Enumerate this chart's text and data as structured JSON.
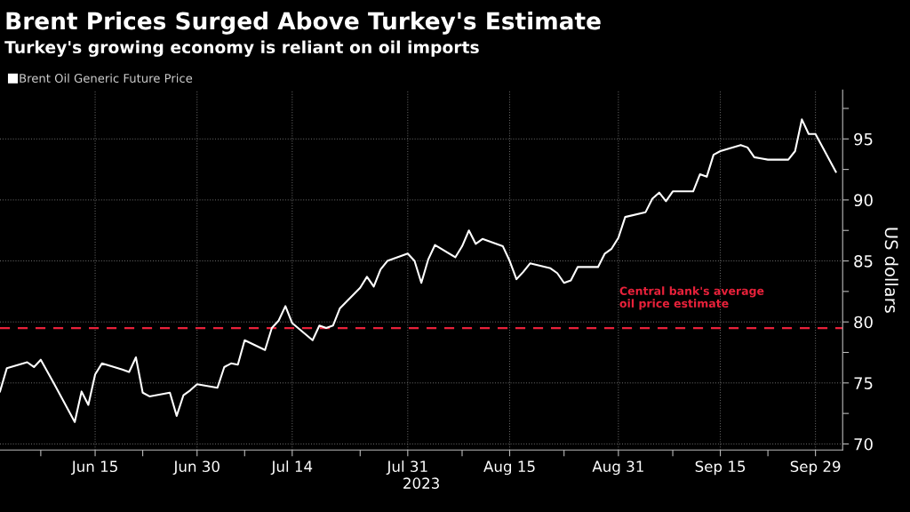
{
  "chart_data": {
    "type": "line",
    "title": "Brent Prices Surged Above Turkey's Estimate",
    "subtitle": "Turkey's growing economy is reliant on oil imports",
    "xlabel": "2023",
    "ylabel": "US dollars",
    "x": [
      "2023-06-01",
      "2023-06-02",
      "2023-06-05",
      "2023-06-06",
      "2023-06-07",
      "2023-06-08",
      "2023-06-09",
      "2023-06-12",
      "2023-06-13",
      "2023-06-14",
      "2023-06-15",
      "2023-06-16",
      "2023-06-19",
      "2023-06-20",
      "2023-06-21",
      "2023-06-22",
      "2023-06-23",
      "2023-06-26",
      "2023-06-27",
      "2023-06-28",
      "2023-06-29",
      "2023-06-30",
      "2023-07-03",
      "2023-07-04",
      "2023-07-05",
      "2023-07-06",
      "2023-07-07",
      "2023-07-10",
      "2023-07-11",
      "2023-07-12",
      "2023-07-13",
      "2023-07-14",
      "2023-07-17",
      "2023-07-18",
      "2023-07-19",
      "2023-07-20",
      "2023-07-21",
      "2023-07-24",
      "2023-07-25",
      "2023-07-26",
      "2023-07-27",
      "2023-07-28",
      "2023-07-31",
      "2023-08-01",
      "2023-08-02",
      "2023-08-03",
      "2023-08-04",
      "2023-08-07",
      "2023-08-08",
      "2023-08-09",
      "2023-08-10",
      "2023-08-11",
      "2023-08-14",
      "2023-08-15",
      "2023-08-16",
      "2023-08-17",
      "2023-08-18",
      "2023-08-21",
      "2023-08-22",
      "2023-08-23",
      "2023-08-24",
      "2023-08-25",
      "2023-08-28",
      "2023-08-29",
      "2023-08-30",
      "2023-08-31",
      "2023-09-01",
      "2023-09-04",
      "2023-09-05",
      "2023-09-06",
      "2023-09-07",
      "2023-09-08",
      "2023-09-11",
      "2023-09-12",
      "2023-09-13",
      "2023-09-14",
      "2023-09-15",
      "2023-09-18",
      "2023-09-19",
      "2023-09-20",
      "2023-09-21",
      "2023-09-22",
      "2023-09-25",
      "2023-09-26",
      "2023-09-27",
      "2023-09-28",
      "2023-09-29",
      "2023-10-02"
    ],
    "series": [
      {
        "name": "Brent Oil Generic Future Price",
        "color": "#ffffff",
        "values": [
          74.3,
          76.2,
          76.7,
          76.3,
          76.9,
          75.9,
          74.9,
          71.8,
          74.3,
          73.2,
          75.7,
          76.6,
          76.1,
          75.9,
          77.1,
          74.2,
          73.9,
          74.2,
          72.3,
          74.0,
          74.4,
          74.9,
          74.6,
          76.3,
          76.6,
          76.5,
          78.5,
          77.7,
          79.5,
          80.1,
          81.3,
          79.9,
          78.5,
          79.7,
          79.5,
          79.7,
          81.1,
          82.8,
          83.7,
          82.9,
          84.3,
          85.0,
          85.6,
          85.0,
          83.2,
          85.1,
          86.3,
          85.3,
          86.2,
          87.5,
          86.4,
          86.8,
          86.2,
          85.0,
          83.5,
          84.1,
          84.8,
          84.4,
          84.0,
          83.2,
          83.4,
          84.5,
          84.5,
          85.6,
          86.0,
          86.9,
          88.6,
          89.0,
          90.1,
          90.6,
          89.9,
          90.7,
          90.7,
          92.1,
          91.9,
          93.7,
          94.0,
          94.5,
          94.3,
          93.5,
          93.4,
          93.3,
          93.3,
          94.0,
          96.6,
          95.4,
          95.4,
          92.3
        ]
      }
    ],
    "xlim": [
      "2023-06-01",
      "2023-10-03"
    ],
    "xticks": [
      {
        "value": "2023-06-07",
        "label": null
      },
      {
        "value": "2023-06-15",
        "label": "Jun 15"
      },
      {
        "value": "2023-06-22",
        "label": null
      },
      {
        "value": "2023-06-30",
        "label": "Jun 30"
      },
      {
        "value": "2023-07-07",
        "label": null
      },
      {
        "value": "2023-07-14",
        "label": "Jul 14"
      },
      {
        "value": "2023-07-24",
        "label": null
      },
      {
        "value": "2023-07-31",
        "label": "Jul 31"
      },
      {
        "value": "2023-08-08",
        "label": null
      },
      {
        "value": "2023-08-15",
        "label": "Aug 15"
      },
      {
        "value": "2023-08-23",
        "label": null
      },
      {
        "value": "2023-08-31",
        "label": "Aug 31"
      },
      {
        "value": "2023-09-08",
        "label": null
      },
      {
        "value": "2023-09-15",
        "label": "Sep 15"
      },
      {
        "value": "2023-09-22",
        "label": null
      },
      {
        "value": "2023-09-29",
        "label": "Sep 29"
      }
    ],
    "ylim": [
      69.5,
      99
    ],
    "yticks": [
      70,
      {
        "value": 72.5,
        "label": null
      },
      75,
      {
        "value": 77.5,
        "label": null
      },
      80,
      {
        "value": 82.5,
        "label": null
      },
      85,
      {
        "value": 87.5,
        "label": null
      },
      90,
      {
        "value": 92.5,
        "label": null
      },
      95,
      {
        "value": 97.5,
        "label": null
      }
    ],
    "ref_lines": [
      {
        "axis": "y",
        "value": 79.5,
        "label": "Central bank's average\noil price estimate",
        "color": "#e8213a",
        "line_style": "dashed"
      }
    ],
    "grid": true,
    "legend": "top left",
    "marker": "none",
    "line_style": "solid"
  }
}
